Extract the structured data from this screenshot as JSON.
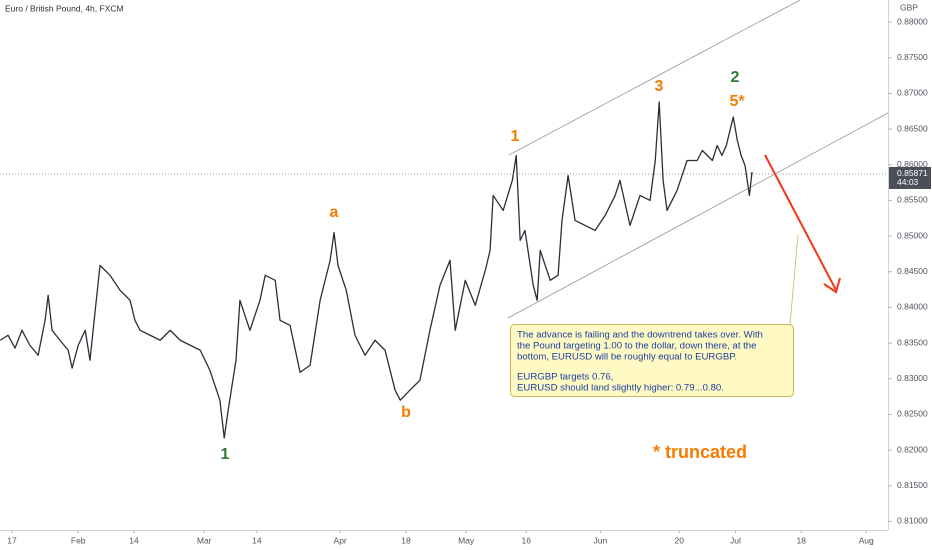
{
  "chart_data": {
    "type": "line",
    "title": "Euro / British Pound, 4h, FXCM",
    "currency": "GBP",
    "color": "#2a2e39",
    "ylim": [
      0.8088,
      0.8831
    ],
    "yticks": [
      {
        "value": 0.88,
        "label": "0.88000"
      },
      {
        "value": 0.875,
        "label": "0.87500"
      },
      {
        "value": 0.87,
        "label": "0.87000"
      },
      {
        "value": 0.865,
        "label": "0.86500"
      },
      {
        "value": 0.86,
        "label": "0.86000"
      },
      {
        "value": 0.855,
        "label": "0.85500"
      },
      {
        "value": 0.85,
        "label": "0.85000"
      },
      {
        "value": 0.845,
        "label": "0.84500"
      },
      {
        "value": 0.84,
        "label": "0.84000"
      },
      {
        "value": 0.835,
        "label": "0.83500"
      },
      {
        "value": 0.83,
        "label": "0.83000"
      },
      {
        "value": 0.825,
        "label": "0.82500"
      },
      {
        "value": 0.82,
        "label": "0.82000"
      },
      {
        "value": 0.815,
        "label": "0.81500"
      },
      {
        "value": 0.81,
        "label": "0.81000"
      }
    ],
    "xlim": [
      14.25,
      218.0
    ],
    "xticks": [
      17,
      {
        "value": 32.2,
        "label": "Feb"
      },
      {
        "value": 45.0,
        "label": "14"
      },
      {
        "value": 61.1,
        "label": "Mar"
      },
      {
        "value": 73.2,
        "label": "14"
      },
      {
        "value": 92.3,
        "label": "Apr"
      },
      {
        "value": 107.4,
        "label": "18"
      },
      {
        "value": 121.2,
        "label": "May"
      },
      {
        "value": 135.0,
        "label": "16"
      },
      {
        "value": 152.0,
        "label": "Jun"
      },
      {
        "value": 170.1,
        "label": "20"
      },
      {
        "value": 183.0,
        "label": "Jul"
      },
      {
        "value": 198.1,
        "label": "18"
      },
      {
        "value": 213.0,
        "label": "Aug"
      }
    ],
    "x": [
      14.3,
      16.1,
      17.7,
      19.3,
      21.1,
      23.0,
      24.6,
      25.3,
      26.2,
      28.0,
      29.9,
      30.8,
      32.2,
      33.8,
      34.9,
      36.1,
      37.2,
      39.5,
      41.8,
      44.1,
      45.2,
      46.4,
      48.7,
      51.0,
      53.3,
      55.6,
      57.9,
      60.2,
      62.4,
      64.7,
      65.7,
      66.6,
      68.4,
      69.3,
      71.6,
      73.9,
      75.1,
      77.4,
      78.5,
      80.8,
      83.1,
      85.4,
      87.7,
      90.0,
      90.9,
      91.8,
      93.7,
      95.7,
      98.0,
      100.3,
      102.6,
      104.9,
      106.1,
      108.3,
      110.6,
      112.9,
      115.2,
      117.5,
      118.7,
      121.0,
      123.3,
      125.6,
      126.7,
      127.4,
      129.7,
      131.8,
      132.7,
      133.6,
      134.7,
      136.6,
      137.5,
      138.2,
      140.5,
      142.3,
      143.2,
      144.6,
      146.2,
      148.5,
      150.8,
      153.1,
      155.4,
      156.5,
      158.8,
      161.1,
      163.4,
      164.6,
      165.5,
      166.4,
      167.3,
      169.6,
      171.9,
      174.2,
      175.4,
      177.7,
      178.8,
      179.9,
      180.9,
      182.5,
      183.4,
      184.3,
      185.2,
      186.2,
      186.8
    ],
    "values": [
      0.8354,
      0.8361,
      0.8343,
      0.8368,
      0.8347,
      0.8333,
      0.8382,
      0.8417,
      0.8368,
      0.8354,
      0.834,
      0.8315,
      0.8347,
      0.8368,
      0.8326,
      0.8396,
      0.8459,
      0.8445,
      0.8424,
      0.841,
      0.8382,
      0.8368,
      0.8361,
      0.8354,
      0.8368,
      0.8354,
      0.8347,
      0.834,
      0.8312,
      0.827,
      0.8217,
      0.8256,
      0.8326,
      0.841,
      0.8368,
      0.841,
      0.8445,
      0.8438,
      0.8382,
      0.8375,
      0.8309,
      0.8319,
      0.841,
      0.8466,
      0.8505,
      0.8459,
      0.8424,
      0.8361,
      0.8333,
      0.8354,
      0.834,
      0.8284,
      0.827,
      0.8284,
      0.8298,
      0.8368,
      0.8431,
      0.8466,
      0.8368,
      0.8438,
      0.8403,
      0.8452,
      0.848,
      0.8557,
      0.8536,
      0.8578,
      0.8613,
      0.8494,
      0.8508,
      0.8431,
      0.841,
      0.848,
      0.8438,
      0.8445,
      0.8522,
      0.8585,
      0.8522,
      0.8515,
      0.8508,
      0.8529,
      0.8557,
      0.8578,
      0.8515,
      0.8557,
      0.855,
      0.8606,
      0.8688,
      0.8578,
      0.8536,
      0.8564,
      0.8606,
      0.8606,
      0.862,
      0.8606,
      0.8627,
      0.8613,
      0.8627,
      0.8667,
      0.8635,
      0.8613,
      0.8599,
      0.8557,
      0.859
    ],
    "last_price": 0.85871,
    "countdown": "44:03",
    "annotations": [
      "1",
      "a",
      "b",
      "1",
      "3",
      "2",
      "5*",
      "* truncated"
    ],
    "note": [
      "The advance is failing and the downtrend takes over. With",
      "the Pound targeting 1.00 to the dollar, down there, at the",
      "bottom, EURUSD will be roughly equal to EURGBP.",
      "EURGBP targets 0.76,",
      "EURUSD should land slightly higher: 0.79...0.80."
    ]
  }
}
